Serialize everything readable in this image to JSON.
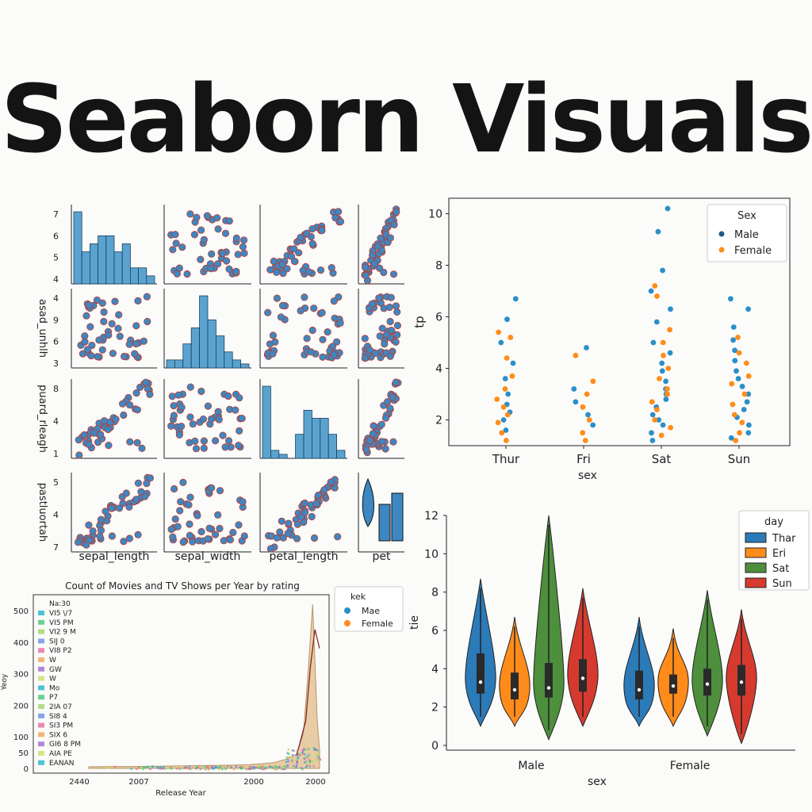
{
  "title": "Seaborn Visuals",
  "colors": {
    "blue": "#3d87c2",
    "pt_blue": "#2a8fc9",
    "dark_blue": "#1f5c8a",
    "orange": "#ff8c1a",
    "green": "#4d8f3c",
    "red": "#d63a2f",
    "edge_red": "#c0392b",
    "hist": "#5aa3d0",
    "tan": "#e6c79c"
  },
  "pairplot": {
    "labels": [
      "sepal_length",
      "sepal_width",
      "petal_length",
      "pet"
    ],
    "ylabels": [
      "",
      "asad_unhlh",
      "puard_rleagh",
      "pastluortah"
    ],
    "row_ticks": [
      [
        "7",
        "6",
        "5",
        "4"
      ],
      [
        "4",
        "9",
        "6",
        "3"
      ],
      [
        "8",
        "4",
        "1"
      ],
      [
        "5",
        "4",
        "7"
      ]
    ]
  },
  "strip": {
    "xlabel": "sex",
    "ylabel": "tp",
    "legend_title": "Sex",
    "legend": [
      "Male",
      "Female"
    ],
    "yticks": [
      "2",
      "4",
      "6",
      "8",
      "10"
    ]
  },
  "violin": {
    "xlabel": "sex",
    "ylabel": "tie",
    "legend_title": "day",
    "legend": [
      "Thar",
      "Eri",
      "Sat",
      "Sun"
    ],
    "yticks": [
      "0",
      "2",
      "4",
      "6",
      "8",
      "10",
      "12"
    ]
  },
  "movies": {
    "title": "Count of Movies and TV Shows per Year by rating",
    "xlabel": "Release Year",
    "ylabel": "Yeoy",
    "xticks": [
      "2440",
      "2007",
      "2000",
      "2000"
    ],
    "yticks": [
      "0",
      "50",
      "100",
      "200",
      "300",
      "400",
      "500"
    ],
    "legend_title": "Na:30",
    "legend_items": [
      "VI5 \\/7",
      "VI5 PM",
      "VI2 9 M",
      "SIJ 0",
      "VI8 P2",
      "W",
      "GW",
      "W",
      "Mo",
      "P7",
      "2IA 07",
      "SI8 4",
      "SI3 PM",
      "SIX 6",
      "GI6 8 PM",
      "AIA PE",
      "EANAN"
    ],
    "legend2_title": "kek",
    "legend2": [
      "Mae",
      "Female"
    ]
  },
  "chart_data": [
    {
      "type": "scatter",
      "title": "",
      "xlabel": "sex",
      "ylabel": "tp",
      "categories": [
        "Thur",
        "Fri",
        "Sat",
        "Sun"
      ],
      "ylim": [
        1,
        10.6
      ],
      "legend_placement": "top-right",
      "grid": false,
      "series": [
        {
          "name": "Male",
          "points": [
            [
              "Thur",
              6.7
            ],
            [
              "Thur",
              5.9
            ],
            [
              "Thur",
              5.0
            ],
            [
              "Thur",
              4.2
            ],
            [
              "Thur",
              3.6
            ],
            [
              "Thur",
              3.0
            ],
            [
              "Thur",
              2.6
            ],
            [
              "Thur",
              2.3
            ],
            [
              "Thur",
              2.0
            ],
            [
              "Thur",
              1.6
            ],
            [
              "Fri",
              4.8
            ],
            [
              "Fri",
              3.2
            ],
            [
              "Fri",
              2.7
            ],
            [
              "Fri",
              2.2
            ],
            [
              "Fri",
              1.8
            ],
            [
              "Sat",
              10.2
            ],
            [
              "Sat",
              9.3
            ],
            [
              "Sat",
              7.8
            ],
            [
              "Sat",
              7.0
            ],
            [
              "Sat",
              6.3
            ],
            [
              "Sat",
              5.8
            ],
            [
              "Sat",
              5.0
            ],
            [
              "Sat",
              4.6
            ],
            [
              "Sat",
              4.2
            ],
            [
              "Sat",
              3.9
            ],
            [
              "Sat",
              3.5
            ],
            [
              "Sat",
              3.2
            ],
            [
              "Sat",
              3.0
            ],
            [
              "Sat",
              2.8
            ],
            [
              "Sat",
              2.5
            ],
            [
              "Sat",
              2.2
            ],
            [
              "Sat",
              2.0
            ],
            [
              "Sat",
              1.8
            ],
            [
              "Sat",
              1.5
            ],
            [
              "Sat",
              1.2
            ],
            [
              "Sun",
              6.7
            ],
            [
              "Sun",
              6.3
            ],
            [
              "Sun",
              5.6
            ],
            [
              "Sun",
              5.1
            ],
            [
              "Sun",
              4.7
            ],
            [
              "Sun",
              4.3
            ],
            [
              "Sun",
              3.9
            ],
            [
              "Sun",
              3.6
            ],
            [
              "Sun",
              3.3
            ],
            [
              "Sun",
              3.0
            ],
            [
              "Sun",
              2.7
            ],
            [
              "Sun",
              2.4
            ],
            [
              "Sun",
              2.1
            ],
            [
              "Sun",
              1.8
            ],
            [
              "Sun",
              1.5
            ],
            [
              "Sun",
              1.3
            ]
          ]
        },
        {
          "name": "Female",
          "points": [
            [
              "Thur",
              5.4
            ],
            [
              "Thur",
              5.2
            ],
            [
              "Thur",
              4.4
            ],
            [
              "Thur",
              3.7
            ],
            [
              "Thur",
              3.2
            ],
            [
              "Thur",
              2.8
            ],
            [
              "Thur",
              2.5
            ],
            [
              "Thur",
              2.2
            ],
            [
              "Thur",
              1.9
            ],
            [
              "Thur",
              1.5
            ],
            [
              "Thur",
              1.2
            ],
            [
              "Fri",
              4.5
            ],
            [
              "Fri",
              3.5
            ],
            [
              "Fri",
              3.0
            ],
            [
              "Fri",
              2.5
            ],
            [
              "Fri",
              2.0
            ],
            [
              "Fri",
              1.5
            ],
            [
              "Fri",
              1.2
            ],
            [
              "Sat",
              7.2
            ],
            [
              "Sat",
              6.8
            ],
            [
              "Sat",
              5.5
            ],
            [
              "Sat",
              5.0
            ],
            [
              "Sat",
              4.5
            ],
            [
              "Sat",
              4.0
            ],
            [
              "Sat",
              3.6
            ],
            [
              "Sat",
              3.2
            ],
            [
              "Sat",
              3.0
            ],
            [
              "Sat",
              2.7
            ],
            [
              "Sat",
              2.4
            ],
            [
              "Sat",
              2.0
            ],
            [
              "Sat",
              1.7
            ],
            [
              "Sat",
              1.4
            ],
            [
              "Sun",
              5.2
            ],
            [
              "Sun",
              4.6
            ],
            [
              "Sun",
              4.2
            ],
            [
              "Sun",
              3.7
            ],
            [
              "Sun",
              3.4
            ],
            [
              "Sun",
              3.0
            ],
            [
              "Sun",
              2.6
            ],
            [
              "Sun",
              2.2
            ],
            [
              "Sun",
              1.9
            ],
            [
              "Sun",
              1.5
            ],
            [
              "Sun",
              1.2
            ]
          ]
        }
      ]
    },
    {
      "type": "violin",
      "title": "",
      "xlabel": "sex",
      "ylabel": "tie",
      "categories": [
        "Male",
        "Female"
      ],
      "ylim": [
        0,
        12
      ],
      "legend_placement": "top-right",
      "series": [
        {
          "name": "Thar",
          "groups": [
            {
              "min": 1,
              "max": 8.7,
              "q1": 2.7,
              "median": 3.3,
              "q3": 4.8
            },
            {
              "min": 1,
              "max": 6.7,
              "q1": 2.4,
              "median": 2.9,
              "q3": 3.9
            }
          ]
        },
        {
          "name": "Eri",
          "groups": [
            {
              "min": 1,
              "max": 6.7,
              "q1": 2.4,
              "median": 2.9,
              "q3": 3.8
            },
            {
              "min": 1,
              "max": 6.1,
              "q1": 2.7,
              "median": 3.1,
              "q3": 3.7
            }
          ]
        },
        {
          "name": "Sat",
          "groups": [
            {
              "min": 0.3,
              "max": 12,
              "q1": 2.5,
              "median": 3.0,
              "q3": 4.3
            },
            {
              "min": 0.5,
              "max": 8.1,
              "q1": 2.6,
              "median": 3.2,
              "q3": 4.0
            }
          ]
        },
        {
          "name": "Sun",
          "groups": [
            {
              "min": 1,
              "max": 8.2,
              "q1": 2.8,
              "median": 3.5,
              "q3": 4.5
            },
            {
              "min": 0.1,
              "max": 7.1,
              "q1": 2.6,
              "median": 3.3,
              "q3": 4.2
            }
          ]
        }
      ]
    },
    {
      "type": "area",
      "title": "Count of Movies and TV Shows per Year by rating",
      "xlabel": "Release Year",
      "ylabel": "Yeoy",
      "ylim": [
        0,
        520
      ],
      "series": [
        {
          "name": "total",
          "x_pos": [
            0,
            0.1,
            0.2,
            0.3,
            0.4,
            0.5,
            0.6,
            0.7,
            0.8,
            0.85,
            0.9,
            0.93,
            0.95,
            0.97,
            0.99,
            1.0
          ],
          "values": [
            5,
            6,
            6,
            7,
            8,
            9,
            10,
            12,
            18,
            28,
            45,
            110,
            300,
            520,
            150,
            60
          ]
        }
      ]
    },
    {
      "type": "pairplot",
      "variables": [
        "sepal_length",
        "sepal_width",
        "petal_length",
        "pet"
      ],
      "histograms": {
        "sepal_length": [
          9,
          4,
          5,
          6,
          6,
          4,
          5,
          2,
          2,
          1
        ],
        "sepal_width": [
          1,
          1,
          3,
          5,
          9,
          6,
          4,
          2,
          1,
          0.5
        ],
        "petal_length": [
          9,
          1,
          0.5,
          0,
          3,
          6,
          5,
          5,
          3,
          1
        ]
      }
    }
  ]
}
